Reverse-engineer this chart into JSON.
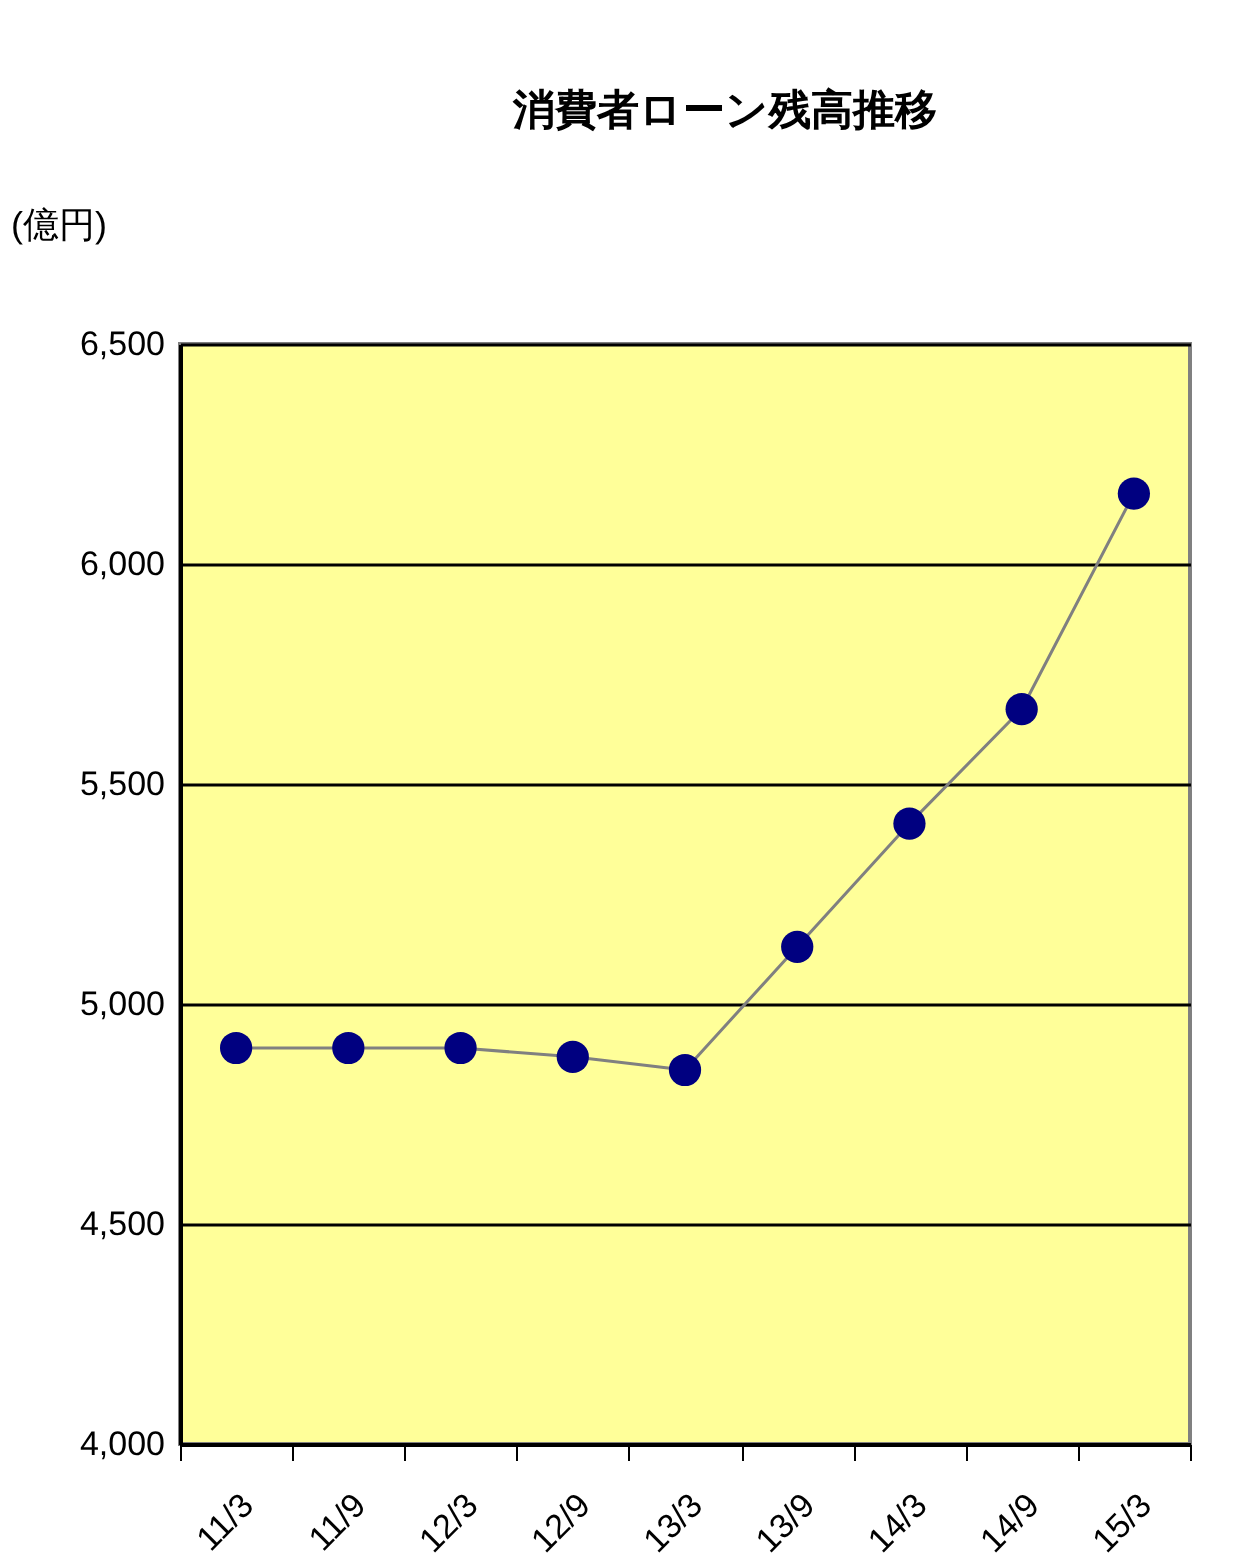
{
  "chart_data": {
    "type": "line",
    "title": "消費者ローン残高推移",
    "ylabel": "(億円)",
    "categories": [
      "11/3",
      "11/9",
      "12/3",
      "12/9",
      "13/3",
      "13/9",
      "14/3",
      "14/9",
      "15/3"
    ],
    "series": [
      {
        "color": "#000080",
        "values": [
          4900,
          4900,
          4900,
          4880,
          4850,
          5130,
          5410,
          5670,
          6160
        ]
      }
    ],
    "ylim": [
      4000,
      6500
    ],
    "yticks": [
      {
        "value": 4000,
        "label": "4,000"
      },
      {
        "value": 4500,
        "label": "4,500"
      },
      {
        "value": 5000,
        "label": "5,000"
      },
      {
        "value": 5500,
        "label": "5,500"
      },
      {
        "value": 6000,
        "label": "6,000"
      },
      {
        "value": 6500,
        "label": "6,500"
      }
    ],
    "grid": "y",
    "marker": "circle",
    "line_style": "solid",
    "legend": false
  }
}
